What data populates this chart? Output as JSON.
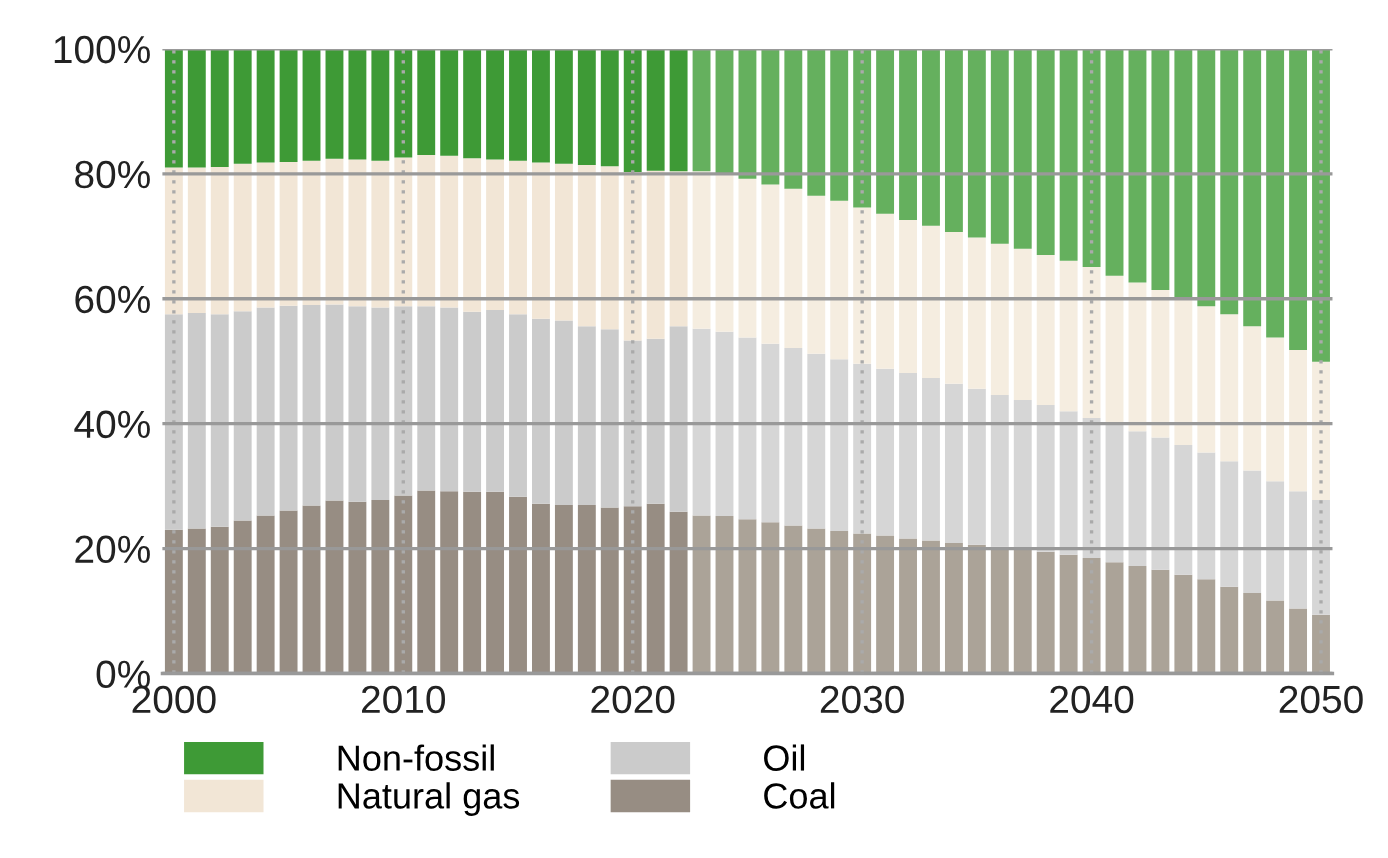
{
  "chart_data": {
    "type": "bar",
    "stacked": true,
    "x": [
      2000,
      2001,
      2002,
      2003,
      2004,
      2005,
      2006,
      2007,
      2008,
      2009,
      2010,
      2011,
      2012,
      2013,
      2014,
      2015,
      2016,
      2017,
      2018,
      2019,
      2020,
      2021,
      2022,
      2023,
      2024,
      2025,
      2026,
      2027,
      2028,
      2029,
      2030,
      2031,
      2032,
      2033,
      2034,
      2035,
      2036,
      2037,
      2038,
      2039,
      2040,
      2041,
      2042,
      2043,
      2044,
      2045,
      2046,
      2047,
      2048,
      2049,
      2050
    ],
    "series": [
      {
        "name": "Coal",
        "color": "#978d83",
        "colors": [
          "#978d83",
          "#978d83",
          "#978d83",
          "#978d83",
          "#978d83",
          "#978d83",
          "#978d83",
          "#978d83",
          "#978d83",
          "#978d83",
          "#978d83",
          "#978d83",
          "#978d83",
          "#978d83",
          "#978d83",
          "#978d83",
          "#978d83",
          "#978d83",
          "#978d83",
          "#978d83",
          "#978d83",
          "#978d83",
          "#978d83",
          "#aba398",
          "#aba398",
          "#aba398",
          "#aba398",
          "#aba398",
          "#aba398",
          "#aba398",
          "#aba398",
          "#aba398",
          "#aba398",
          "#aba398",
          "#aba398",
          "#aba398",
          "#aba398",
          "#aba398",
          "#aba398",
          "#aba398",
          "#aba398",
          "#aba398",
          "#aba398",
          "#aba398",
          "#aba398",
          "#aba398",
          "#aba398",
          "#aba398",
          "#aba398",
          "#aba398",
          "#aba398"
        ],
        "values": [
          23.0,
          23.2,
          23.5,
          24.5,
          25.3,
          26.1,
          26.9,
          27.7,
          27.5,
          27.8,
          28.5,
          29.3,
          29.2,
          29.1,
          29.1,
          28.3,
          27.2,
          27.0,
          27.0,
          26.6,
          26.8,
          27.2,
          25.9,
          25.3,
          25.2,
          24.7,
          24.2,
          23.7,
          23.2,
          22.8,
          22.4,
          22.1,
          21.6,
          21.3,
          20.9,
          20.6,
          20.3,
          20.1,
          19.5,
          19.0,
          18.5,
          17.8,
          17.2,
          16.6,
          15.8,
          15.1,
          13.9,
          12.9,
          11.7,
          10.4,
          9.4
        ]
      },
      {
        "name": "Oil",
        "color": "#cbcbcb",
        "colors": [
          "#cbcbcb",
          "#cbcbcb",
          "#cbcbcb",
          "#cbcbcb",
          "#cbcbcb",
          "#cbcbcb",
          "#cbcbcb",
          "#cbcbcb",
          "#cbcbcb",
          "#cbcbcb",
          "#cbcbcb",
          "#cbcbcb",
          "#cbcbcb",
          "#cbcbcb",
          "#cbcbcb",
          "#cbcbcb",
          "#cbcbcb",
          "#cbcbcb",
          "#cbcbcb",
          "#cbcbcb",
          "#cbcbcb",
          "#cbcbcb",
          "#cbcbcb",
          "#d6d6d6",
          "#d6d6d6",
          "#d6d6d6",
          "#d6d6d6",
          "#d6d6d6",
          "#d6d6d6",
          "#d6d6d6",
          "#d6d6d6",
          "#d6d6d6",
          "#d6d6d6",
          "#d6d6d6",
          "#d6d6d6",
          "#d6d6d6",
          "#d6d6d6",
          "#d6d6d6",
          "#d6d6d6",
          "#d6d6d6",
          "#d6d6d6",
          "#d6d6d6",
          "#d6d6d6",
          "#d6d6d6",
          "#d6d6d6",
          "#d6d6d6",
          "#d6d6d6",
          "#d6d6d6",
          "#d6d6d6",
          "#d6d6d6",
          "#d6d6d6"
        ],
        "values": [
          34.5,
          34.5,
          34.0,
          33.5,
          33.3,
          32.8,
          32.1,
          31.4,
          31.3,
          30.8,
          30.3,
          29.5,
          29.4,
          28.8,
          29.1,
          29.2,
          29.6,
          29.5,
          28.6,
          28.5,
          26.5,
          26.4,
          29.7,
          29.9,
          29.5,
          29.1,
          28.6,
          28.4,
          28.0,
          27.5,
          27.2,
          26.7,
          26.5,
          26.0,
          25.5,
          25.0,
          24.3,
          23.7,
          23.5,
          23.0,
          22.4,
          22.1,
          21.6,
          21.2,
          20.8,
          20.3,
          20.1,
          19.6,
          19.1,
          18.8,
          18.4
        ]
      },
      {
        "name": "Natural gas",
        "color": "#f2e6d6",
        "colors": [
          "#f2e6d6",
          "#f2e6d6",
          "#f2e6d6",
          "#f2e6d6",
          "#f2e6d6",
          "#f2e6d6",
          "#f2e6d6",
          "#f2e6d6",
          "#f2e6d6",
          "#f2e6d6",
          "#f2e6d6",
          "#f2e6d6",
          "#f2e6d6",
          "#f2e6d6",
          "#f2e6d6",
          "#f2e6d6",
          "#f2e6d6",
          "#f2e6d6",
          "#f2e6d6",
          "#f2e6d6",
          "#f2e6d6",
          "#f2e6d6",
          "#f2e6d6",
          "#f5ede0",
          "#f5ede0",
          "#f5ede0",
          "#f5ede0",
          "#f5ede0",
          "#f5ede0",
          "#f5ede0",
          "#f5ede0",
          "#f5ede0",
          "#f5ede0",
          "#f5ede0",
          "#f5ede0",
          "#f5ede0",
          "#f5ede0",
          "#f5ede0",
          "#f5ede0",
          "#f5ede0",
          "#f5ede0",
          "#f5ede0",
          "#f5ede0",
          "#f5ede0",
          "#f5ede0",
          "#f5ede0",
          "#f5ede0",
          "#f5ede0",
          "#f5ede0",
          "#f5ede0",
          "#f5ede0"
        ],
        "values": [
          23.5,
          23.3,
          23.6,
          23.6,
          23.2,
          23.0,
          23.1,
          23.3,
          23.5,
          23.5,
          23.8,
          24.2,
          24.3,
          24.6,
          24.1,
          24.6,
          25.0,
          25.1,
          25.8,
          26.1,
          27.0,
          26.9,
          24.8,
          25.2,
          25.4,
          25.4,
          25.5,
          25.5,
          25.3,
          25.4,
          25.0,
          24.8,
          24.5,
          24.4,
          24.3,
          24.2,
          24.2,
          24.2,
          24.0,
          24.1,
          24.2,
          23.8,
          23.8,
          23.6,
          23.6,
          23.4,
          23.5,
          23.1,
          23.0,
          22.6,
          22.1
        ]
      },
      {
        "name": "Non-fossil",
        "color": "#3e9a36",
        "colors": [
          "#3e9a36",
          "#3e9a36",
          "#3e9a36",
          "#3e9a36",
          "#3e9a36",
          "#3e9a36",
          "#3e9a36",
          "#3e9a36",
          "#3e9a36",
          "#3e9a36",
          "#3e9a36",
          "#3e9a36",
          "#3e9a36",
          "#3e9a36",
          "#3e9a36",
          "#3e9a36",
          "#3e9a36",
          "#3e9a36",
          "#3e9a36",
          "#3e9a36",
          "#3e9a36",
          "#3e9a36",
          "#3e9a36",
          "#65b05e",
          "#65b05e",
          "#65b05e",
          "#65b05e",
          "#65b05e",
          "#65b05e",
          "#65b05e",
          "#65b05e",
          "#65b05e",
          "#65b05e",
          "#65b05e",
          "#65b05e",
          "#65b05e",
          "#65b05e",
          "#65b05e",
          "#65b05e",
          "#65b05e",
          "#65b05e",
          "#65b05e",
          "#65b05e",
          "#65b05e",
          "#65b05e",
          "#65b05e",
          "#65b05e",
          "#65b05e",
          "#65b05e",
          "#65b05e",
          "#65b05e"
        ],
        "values": [
          19.0,
          19.0,
          18.9,
          18.4,
          18.2,
          18.1,
          17.9,
          17.6,
          17.7,
          17.9,
          17.4,
          17.0,
          17.1,
          17.5,
          17.7,
          17.9,
          18.2,
          18.4,
          18.6,
          18.8,
          19.7,
          19.5,
          19.6,
          19.6,
          19.9,
          20.8,
          21.7,
          22.4,
          23.5,
          24.3,
          25.4,
          26.4,
          27.4,
          28.3,
          29.3,
          30.2,
          31.2,
          32.0,
          33.0,
          33.9,
          34.9,
          36.3,
          37.4,
          38.6,
          39.8,
          41.2,
          42.5,
          44.4,
          46.2,
          48.2,
          50.1
        ]
      }
    ],
    "xlim": [
      1999.5,
      2050.5
    ],
    "xticks": [
      2000,
      2010,
      2020,
      2030,
      2040,
      2050
    ],
    "ylim": [
      0,
      100
    ],
    "yticks": [
      {
        "value": 0,
        "label": "0%"
      },
      {
        "value": 20,
        "label": "20%"
      },
      {
        "value": 40,
        "label": "40%"
      },
      {
        "value": 60,
        "label": "60%"
      },
      {
        "value": 80,
        "label": "80%"
      },
      {
        "value": 100,
        "label": "100%"
      }
    ],
    "grid": true,
    "legend": "bottom"
  }
}
